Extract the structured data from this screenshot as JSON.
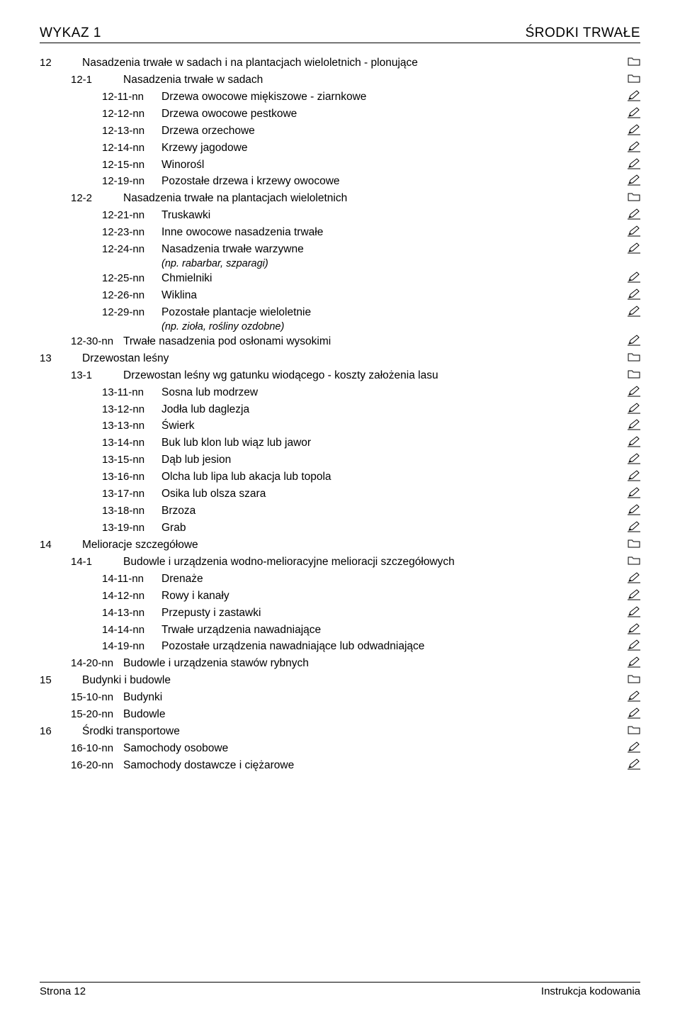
{
  "header": {
    "left": "WYKAZ 1",
    "right": "ŚRODKI TRWAŁE"
  },
  "footer": {
    "left": "Strona 12",
    "right": "Instrukcja kodowania"
  },
  "rows": [
    {
      "lv": 0,
      "code": "12",
      "label": "Nasadzenia trwałe w sadach i na plantacjach wieloletnich - plonujące",
      "icon": "folder"
    },
    {
      "lv": 1,
      "code": "12-1",
      "label": "Nasadzenia trwałe w sadach",
      "icon": "folder"
    },
    {
      "lv": 2,
      "code": "12-11-nn",
      "label": "Drzewa owocowe miękiszowe - ziarnkowe",
      "icon": "pen"
    },
    {
      "lv": 2,
      "code": "12-12-nn",
      "label": "Drzewa owocowe pestkowe",
      "icon": "pen"
    },
    {
      "lv": 2,
      "code": "12-13-nn",
      "label": "Drzewa orzechowe",
      "icon": "pen"
    },
    {
      "lv": 2,
      "code": "12-14-nn",
      "label": "Krzewy jagodowe",
      "icon": "pen"
    },
    {
      "lv": 2,
      "code": "12-15-nn",
      "label": "Winorośl",
      "icon": "pen"
    },
    {
      "lv": 2,
      "code": "12-19-nn",
      "label": "Pozostałe drzewa i krzewy owocowe",
      "icon": "pen"
    },
    {
      "lv": 1,
      "code": "12-2",
      "label": "Nasadzenia trwałe na plantacjach wieloletnich",
      "icon": "folder"
    },
    {
      "lv": 2,
      "code": "12-21-nn",
      "label": "Truskawki",
      "icon": "pen"
    },
    {
      "lv": 2,
      "code": "12-23-nn",
      "label": "Inne owocowe nasadzenia trwałe",
      "icon": "pen"
    },
    {
      "lv": 2,
      "code": "12-24-nn",
      "label": "Nasadzenia trwałe warzywne",
      "icon": "pen",
      "note": "(np. rabarbar, szparagi)"
    },
    {
      "lv": 2,
      "code": "12-25-nn",
      "label": "Chmielniki",
      "icon": "pen"
    },
    {
      "lv": 2,
      "code": "12-26-nn",
      "label": "Wiklina",
      "icon": "pen"
    },
    {
      "lv": 2,
      "code": "12-29-nn",
      "label": "Pozostałe plantacje wieloletnie",
      "icon": "pen",
      "note": "(np. zioła, rośliny ozdobne)"
    },
    {
      "lv": 1,
      "code": "12-30-nn",
      "label": "Trwałe nasadzenia pod osłonami wysokimi",
      "icon": "pen"
    },
    {
      "lv": 0,
      "code": "13",
      "label": "Drzewostan leśny",
      "icon": "folder"
    },
    {
      "lv": 1,
      "code": "13-1",
      "label": "Drzewostan leśny wg gatunku wiodącego - koszty założenia lasu",
      "icon": "folder"
    },
    {
      "lv": 2,
      "code": "13-11-nn",
      "label": "Sosna lub modrzew",
      "icon": "pen"
    },
    {
      "lv": 2,
      "code": "13-12-nn",
      "label": "Jodła lub daglezja",
      "icon": "pen"
    },
    {
      "lv": 2,
      "code": "13-13-nn",
      "label": "Świerk",
      "icon": "pen"
    },
    {
      "lv": 2,
      "code": "13-14-nn",
      "label": "Buk lub klon lub wiąz lub jawor",
      "icon": "pen"
    },
    {
      "lv": 2,
      "code": "13-15-nn",
      "label": "Dąb lub jesion",
      "icon": "pen"
    },
    {
      "lv": 2,
      "code": "13-16-nn",
      "label": "Olcha lub lipa lub akacja lub topola",
      "icon": "pen"
    },
    {
      "lv": 2,
      "code": "13-17-nn",
      "label": "Osika lub olsza szara",
      "icon": "pen"
    },
    {
      "lv": 2,
      "code": "13-18-nn",
      "label": "Brzoza",
      "icon": "pen"
    },
    {
      "lv": 2,
      "code": "13-19-nn",
      "label": "Grab",
      "icon": "pen"
    },
    {
      "lv": 0,
      "code": "14",
      "label": "Melioracje szczegółowe",
      "icon": "folder"
    },
    {
      "lv": 1,
      "code": "14-1",
      "label": "Budowle i urządzenia wodno-melioracyjne melioracji szczegółowych",
      "icon": "folder"
    },
    {
      "lv": 2,
      "code": "14-11-nn",
      "label": "Drenaże",
      "icon": "pen"
    },
    {
      "lv": 2,
      "code": "14-12-nn",
      "label": "Rowy i kanały",
      "icon": "pen"
    },
    {
      "lv": 2,
      "code": "14-13-nn",
      "label": "Przepusty i zastawki",
      "icon": "pen"
    },
    {
      "lv": 2,
      "code": "14-14-nn",
      "label": "Trwałe urządzenia nawadniające",
      "icon": "pen"
    },
    {
      "lv": 2,
      "code": "14-19-nn",
      "label": "Pozostałe urządzenia nawadniające lub odwadniające",
      "icon": "pen"
    },
    {
      "lv": 1,
      "code": "14-20-nn",
      "label": "Budowle i urządzenia stawów rybnych",
      "icon": "pen"
    },
    {
      "lv": 0,
      "code": "15",
      "label": "Budynki i budowle",
      "icon": "folder"
    },
    {
      "lv": 1,
      "code": "15-10-nn",
      "label": "Budynki",
      "icon": "pen"
    },
    {
      "lv": 1,
      "code": "15-20-nn",
      "label": "Budowle",
      "icon": "pen"
    },
    {
      "lv": 0,
      "code": "16",
      "label": "Środki transportowe",
      "icon": "folder"
    },
    {
      "lv": 1,
      "code": "16-10-nn",
      "label": "Samochody osobowe",
      "icon": "pen"
    },
    {
      "lv": 1,
      "code": "16-20-nn",
      "label": "Samochody dostawcze i ciężarowe",
      "icon": "pen"
    }
  ]
}
